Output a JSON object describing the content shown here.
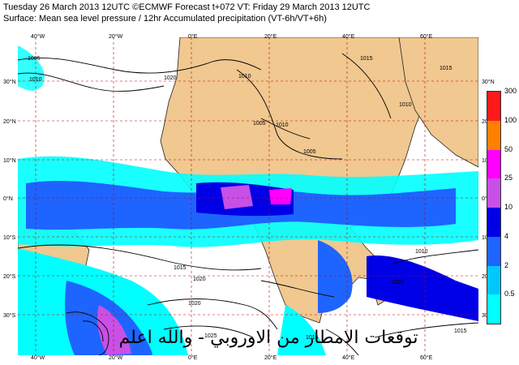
{
  "header": {
    "line1": "Tuesday 26 March 2013 12UTC ©ECMWF Forecast t+072 VT: Friday 29 March 2013 12UTC",
    "line2": "Surface: Mean sea level pressure / 12hr Accumulated precipitation (VT-6h/VT+6h)"
  },
  "map": {
    "lat_labels": [
      "30°N",
      "20°N",
      "10°N",
      "0°N",
      "10°S",
      "20°S",
      "30°S"
    ],
    "lon_labels": [
      "40°W",
      "20°W",
      "0°E",
      "20°E",
      "40°E",
      "60°E"
    ],
    "isobar_labels": [
      "1005",
      "1010",
      "1020",
      "1010",
      "1005",
      "1010",
      "1005",
      "1015",
      "1015",
      "1010",
      "1015",
      "1020",
      "1020",
      "1025",
      "1015",
      "1015",
      "1010",
      "1015"
    ],
    "colors": {
      "ocean": "#ffffff",
      "land": "#f0c890",
      "grid": "#c00000",
      "isobar": "#000000"
    }
  },
  "legend": {
    "values": [
      "300",
      "100",
      "50",
      "25",
      "10",
      "4",
      "2",
      "0.5"
    ],
    "colors": [
      "#ff1a1a",
      "#ff8000",
      "#ff00ff",
      "#c850e6",
      "#0000e6",
      "#1e64ff",
      "#00c8ff",
      "#00ffff"
    ]
  },
  "overlay_text": "توقعات الامطار من الاوروبي - والله اعلم"
}
